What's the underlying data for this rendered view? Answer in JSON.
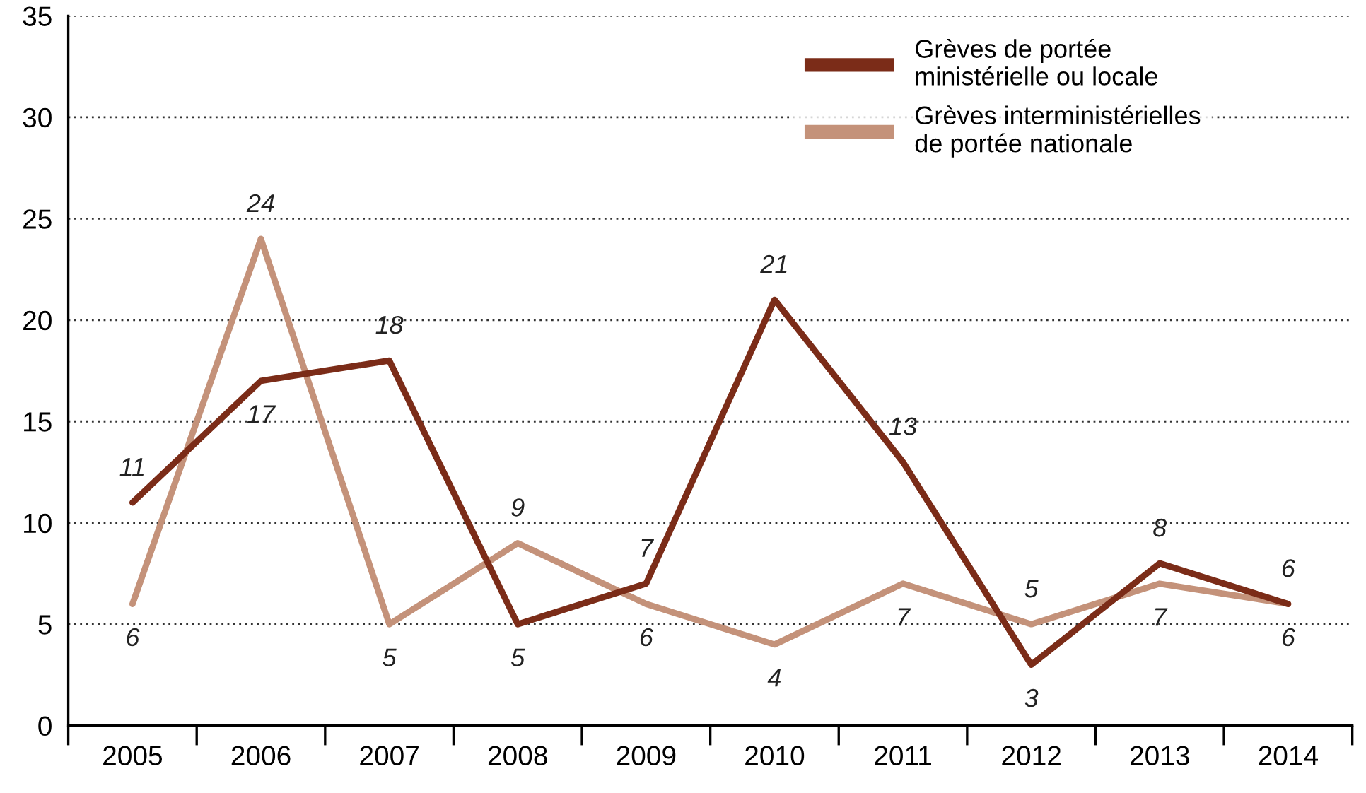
{
  "chart_data": {
    "type": "line",
    "categories": [
      "2005",
      "2006",
      "2007",
      "2008",
      "2009",
      "2010",
      "2011",
      "2012",
      "2013",
      "2014"
    ],
    "series": [
      {
        "name": "Grèves de portée\nministérielle ou locale",
        "color": "#7b2c18",
        "values": [
          11,
          17,
          18,
          5,
          7,
          21,
          13,
          3,
          8,
          6
        ]
      },
      {
        "name": "Grèves interministérielles\nde portée nationale",
        "color": "#c4927a",
        "values": [
          6,
          24,
          5,
          9,
          6,
          4,
          7,
          5,
          7,
          6
        ]
      }
    ],
    "ylim": [
      0,
      35
    ],
    "yticks": [
      0,
      5,
      10,
      15,
      20,
      25,
      30,
      35
    ],
    "grid": "y",
    "legend": "top right",
    "data_labels": true,
    "marker": "none",
    "line_style": "solid"
  }
}
